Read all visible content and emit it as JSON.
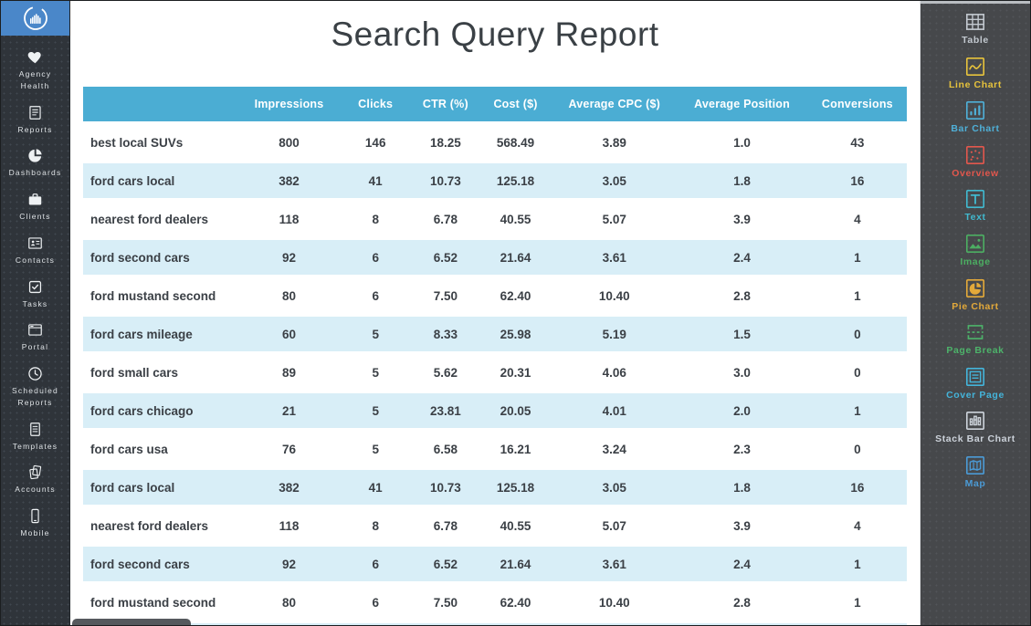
{
  "report": {
    "title": "Search Query Report",
    "table": {
      "columns": [
        "",
        "Impressions",
        "Clicks",
        "CTR (%)",
        "Cost ($)",
        "Average CPC ($)",
        "Average Position",
        "Conversions"
      ],
      "rows": [
        [
          "best local SUVs",
          "800",
          "146",
          "18.25",
          "568.49",
          "3.89",
          "1.0",
          "43"
        ],
        [
          "ford cars local",
          "382",
          "41",
          "10.73",
          "125.18",
          "3.05",
          "1.8",
          "16"
        ],
        [
          "nearest ford dealers",
          "118",
          "8",
          "6.78",
          "40.55",
          "5.07",
          "3.9",
          "4"
        ],
        [
          "ford second cars",
          "92",
          "6",
          "6.52",
          "21.64",
          "3.61",
          "2.4",
          "1"
        ],
        [
          "ford mustand second",
          "80",
          "6",
          "7.50",
          "62.40",
          "10.40",
          "2.8",
          "1"
        ],
        [
          "ford cars mileage",
          "60",
          "5",
          "8.33",
          "25.98",
          "5.19",
          "1.5",
          "0"
        ],
        [
          "ford small cars",
          "89",
          "5",
          "5.62",
          "20.31",
          "4.06",
          "3.0",
          "0"
        ],
        [
          "ford cars chicago",
          "21",
          "5",
          "23.81",
          "20.05",
          "4.01",
          "2.0",
          "1"
        ],
        [
          "ford cars usa",
          "76",
          "5",
          "6.58",
          "16.21",
          "3.24",
          "2.3",
          "0"
        ],
        [
          "ford cars local",
          "382",
          "41",
          "10.73",
          "125.18",
          "3.05",
          "1.8",
          "16"
        ],
        [
          "nearest ford dealers",
          "118",
          "8",
          "6.78",
          "40.55",
          "5.07",
          "3.9",
          "4"
        ],
        [
          "ford second cars",
          "92",
          "6",
          "6.52",
          "21.64",
          "3.61",
          "2.4",
          "1"
        ],
        [
          "ford mustand second",
          "80",
          "6",
          "7.50",
          "62.40",
          "10.40",
          "2.8",
          "1"
        ]
      ]
    }
  },
  "left_sidebar": {
    "items": [
      {
        "label": "Agency Health",
        "icon": "heart-icon"
      },
      {
        "label": "Reports",
        "icon": "report-doc-icon"
      },
      {
        "label": "Dashboards",
        "icon": "pie-dashboard-icon"
      },
      {
        "label": "Clients",
        "icon": "briefcase-icon"
      },
      {
        "label": "Contacts",
        "icon": "contact-card-icon"
      },
      {
        "label": "Tasks",
        "icon": "checkbox-icon"
      },
      {
        "label": "Portal",
        "icon": "browser-window-icon"
      },
      {
        "label": "Scheduled Reports",
        "icon": "clock-icon"
      },
      {
        "label": "Templates",
        "icon": "document-icon"
      },
      {
        "label": "Accounts",
        "icon": "stacked-pages-icon"
      },
      {
        "label": "Mobile",
        "icon": "smartphone-icon"
      }
    ]
  },
  "right_sidebar": {
    "widgets": [
      {
        "label": "Table",
        "icon": "table-widget-icon",
        "color": "#c3c9d0"
      },
      {
        "label": "Line Chart",
        "icon": "line-chart-icon",
        "color": "#e7c33c"
      },
      {
        "label": "Bar Chart",
        "icon": "bar-chart-icon",
        "color": "#4fb0d8"
      },
      {
        "label": "Overview",
        "icon": "overview-icon",
        "color": "#e2574d"
      },
      {
        "label": "Text",
        "icon": "text-widget-icon",
        "color": "#41b9cf"
      },
      {
        "label": "Image",
        "icon": "image-widget-icon",
        "color": "#4cae62"
      },
      {
        "label": "Pie Chart",
        "icon": "pie-chart-icon",
        "color": "#e3a93a"
      },
      {
        "label": "Page Break",
        "icon": "page-break-icon",
        "color": "#4db36a"
      },
      {
        "label": "Cover Page",
        "icon": "cover-page-icon",
        "color": "#44b4da"
      },
      {
        "label": "Stack Bar Chart",
        "icon": "stack-bar-chart-icon",
        "color": "#ccd2da"
      },
      {
        "label": "Map",
        "icon": "map-widget-icon",
        "color": "#4b9ad5"
      }
    ]
  },
  "colors": {
    "header_blue": "#4badd3",
    "row_stripe_blue": "#d8eef7",
    "logo_blue": "#4a87c9",
    "left_sidebar_bg": "#2f343a",
    "right_sidebar_bg": "#46484b",
    "text_dark": "#3b4046"
  }
}
